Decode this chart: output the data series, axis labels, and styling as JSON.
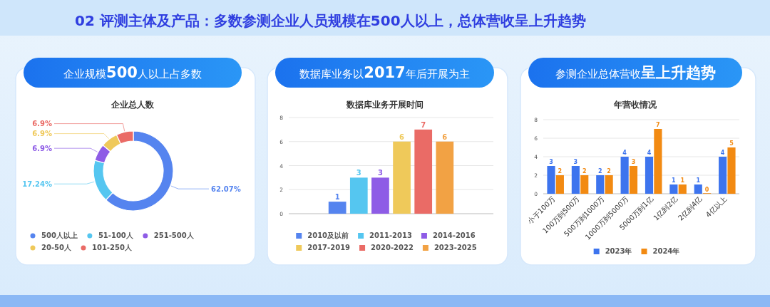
{
  "chart_data": [
    {
      "type": "donut",
      "annotations": [
        "02 评测主体及产品：多数参测企业人员规模在500人以上，总体营收呈上升趋势"
      ],
      "subtitle": "企业规模**500**人以上占多数",
      "title": "企业总人数",
      "categories": [
        "500人以上",
        "51-100人",
        "251-500人",
        "20-50人",
        "101-250人"
      ],
      "values": [
        62.07,
        17.24,
        6.9,
        6.9,
        6.9
      ],
      "value_labels": [
        "62.07%",
        "17.24%",
        "6.9%",
        "6.9%",
        "6.9%"
      ],
      "colors": [
        "#5584ef",
        "#55c6f0",
        "#8e5ce6",
        "#efc95a",
        "#ea6b66"
      ],
      "legend": "bottom"
    },
    {
      "type": "bar",
      "subtitle": "数据库业务以**2017**年后开展为主",
      "title": "数据库业务开展时间",
      "categories": [
        null
      ],
      "series": [
        {
          "name": "2010及以前",
          "color": "#5584ef",
          "values": [
            1
          ]
        },
        {
          "name": "2011-2013",
          "color": "#55c6f0",
          "values": [
            3
          ]
        },
        {
          "name": "2014-2016",
          "color": "#8e5ce6",
          "values": [
            3
          ]
        },
        {
          "name": "2017-2019",
          "color": "#efc95a",
          "values": [
            6
          ]
        },
        {
          "name": "2020-2022",
          "color": "#ea6b66",
          "values": [
            7
          ]
        },
        {
          "name": "2023-2025",
          "color": "#f2a244",
          "values": [
            6
          ]
        }
      ],
      "ylim": [
        0,
        8
      ],
      "yticks": [
        0,
        2,
        4,
        6,
        8
      ],
      "grid": "y",
      "legend": "bottom",
      "data_labels": true,
      "tick_labels": "y"
    },
    {
      "type": "bar",
      "subtitle": "参测企业总体营收**呈上升趋势**",
      "title": "年营收情况",
      "categories": [
        "小于100万",
        "100万到500万",
        "500万到1000万",
        "1000万到5000万",
        "5000万到1亿",
        "1亿到2亿",
        "2亿到4亿",
        "4亿以上"
      ],
      "series": [
        {
          "name": "2023年",
          "color": "#3d74ee",
          "values": [
            3,
            3,
            2,
            4,
            4,
            1,
            1,
            4
          ]
        },
        {
          "name": "2024年",
          "color": "#f28a12",
          "values": [
            2,
            2,
            2,
            3,
            7,
            1,
            0,
            5
          ]
        }
      ],
      "ylim": [
        0,
        8
      ],
      "yticks": [
        0,
        2,
        4,
        6,
        8
      ],
      "grid": "y",
      "legend": "bottom",
      "data_labels": true
    }
  ]
}
